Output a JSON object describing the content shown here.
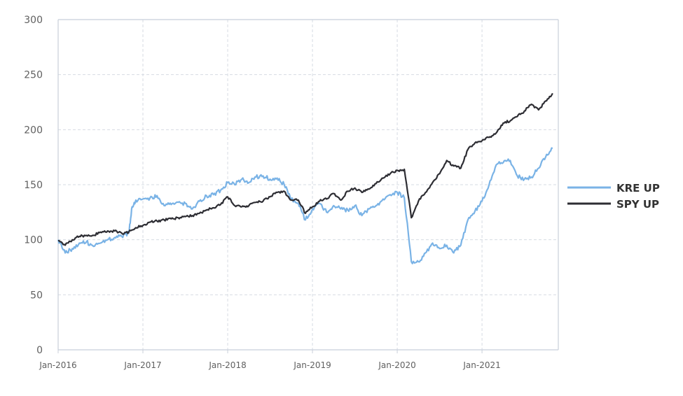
{
  "chart_data": {
    "type": "line",
    "title": "",
    "xlabel": "",
    "ylabel": "",
    "xlim": [
      "2016-01",
      "2021-11"
    ],
    "ylim": [
      0,
      300
    ],
    "y_ticks": [
      "0",
      "50",
      "100",
      "150",
      "200",
      "250",
      "300"
    ],
    "x_ticks": [
      "Jan-2016",
      "Jan-2017",
      "Jan-2018",
      "Jan-2019",
      "Jan-2020",
      "Jan-2021"
    ],
    "grid": true,
    "legend_position": "right",
    "series": [
      {
        "name": "KRE UP",
        "color": "#7ab3e6",
        "points": [
          [
            "2016-01-01",
            100
          ],
          [
            "2016-02-01",
            88
          ],
          [
            "2016-03-01",
            92
          ],
          [
            "2016-04-01",
            97
          ],
          [
            "2016-05-01",
            98
          ],
          [
            "2016-06-01",
            94
          ],
          [
            "2016-07-01",
            97
          ],
          [
            "2016-08-01",
            100
          ],
          [
            "2016-09-01",
            102
          ],
          [
            "2016-10-01",
            103
          ],
          [
            "2016-11-01",
            106
          ],
          [
            "2016-11-15",
            130
          ],
          [
            "2016-12-01",
            136
          ],
          [
            "2017-01-01",
            137
          ],
          [
            "2017-02-01",
            138
          ],
          [
            "2017-03-01",
            140
          ],
          [
            "2017-04-01",
            131
          ],
          [
            "2017-05-01",
            132
          ],
          [
            "2017-06-01",
            134
          ],
          [
            "2017-07-01",
            133
          ],
          [
            "2017-08-01",
            128
          ],
          [
            "2017-09-01",
            135
          ],
          [
            "2017-10-01",
            140
          ],
          [
            "2017-11-01",
            141
          ],
          [
            "2017-12-01",
            145
          ],
          [
            "2018-01-01",
            152
          ],
          [
            "2018-02-01",
            150
          ],
          [
            "2018-03-01",
            155
          ],
          [
            "2018-04-01",
            152
          ],
          [
            "2018-05-01",
            157
          ],
          [
            "2018-06-01",
            158
          ],
          [
            "2018-07-01",
            155
          ],
          [
            "2018-08-01",
            156
          ],
          [
            "2018-09-01",
            150
          ],
          [
            "2018-10-01",
            137
          ],
          [
            "2018-11-01",
            133
          ],
          [
            "2018-12-01",
            118
          ],
          [
            "2019-01-01",
            128
          ],
          [
            "2019-02-01",
            133
          ],
          [
            "2019-03-01",
            125
          ],
          [
            "2019-04-01",
            131
          ],
          [
            "2019-05-01",
            128
          ],
          [
            "2019-06-01",
            127
          ],
          [
            "2019-07-01",
            131
          ],
          [
            "2019-08-01",
            122
          ],
          [
            "2019-09-01",
            128
          ],
          [
            "2019-10-01",
            131
          ],
          [
            "2019-11-01",
            137
          ],
          [
            "2019-12-01",
            141
          ],
          [
            "2020-01-01",
            143
          ],
          [
            "2020-02-01",
            138
          ],
          [
            "2020-03-01",
            80
          ],
          [
            "2020-04-01",
            80
          ],
          [
            "2020-05-01",
            88
          ],
          [
            "2020-06-01",
            97
          ],
          [
            "2020-07-01",
            92
          ],
          [
            "2020-08-01",
            95
          ],
          [
            "2020-09-01",
            88
          ],
          [
            "2020-10-01",
            95
          ],
          [
            "2020-11-01",
            118
          ],
          [
            "2020-12-01",
            126
          ],
          [
            "2021-01-01",
            135
          ],
          [
            "2021-02-01",
            150
          ],
          [
            "2021-03-01",
            168
          ],
          [
            "2021-04-01",
            170
          ],
          [
            "2021-05-01",
            172
          ],
          [
            "2021-06-01",
            158
          ],
          [
            "2021-07-01",
            155
          ],
          [
            "2021-08-01",
            157
          ],
          [
            "2021-09-01",
            165
          ],
          [
            "2021-10-01",
            175
          ],
          [
            "2021-11-01",
            183
          ]
        ]
      },
      {
        "name": "SPY UP",
        "color": "#2d2d33",
        "points": [
          [
            "2016-01-01",
            99
          ],
          [
            "2016-02-01",
            95
          ],
          [
            "2016-03-01",
            100
          ],
          [
            "2016-04-01",
            103
          ],
          [
            "2016-05-01",
            104
          ],
          [
            "2016-06-01",
            104
          ],
          [
            "2016-07-01",
            107
          ],
          [
            "2016-08-01",
            108
          ],
          [
            "2016-09-01",
            108
          ],
          [
            "2016-10-01",
            106
          ],
          [
            "2016-11-01",
            107
          ],
          [
            "2016-12-01",
            111
          ],
          [
            "2017-01-01",
            113
          ],
          [
            "2017-02-01",
            116
          ],
          [
            "2017-03-01",
            117
          ],
          [
            "2017-04-01",
            118
          ],
          [
            "2017-05-01",
            119
          ],
          [
            "2017-06-01",
            120
          ],
          [
            "2017-07-01",
            121
          ],
          [
            "2017-08-01",
            122
          ],
          [
            "2017-09-01",
            124
          ],
          [
            "2017-10-01",
            127
          ],
          [
            "2017-11-01",
            129
          ],
          [
            "2017-12-01",
            132
          ],
          [
            "2018-01-01",
            139
          ],
          [
            "2018-02-01",
            131
          ],
          [
            "2018-03-01",
            130
          ],
          [
            "2018-04-01",
            131
          ],
          [
            "2018-05-01",
            134
          ],
          [
            "2018-06-01",
            135
          ],
          [
            "2018-07-01",
            139
          ],
          [
            "2018-08-01",
            143
          ],
          [
            "2018-09-01",
            144
          ],
          [
            "2018-10-01",
            136
          ],
          [
            "2018-11-01",
            136
          ],
          [
            "2018-12-01",
            124
          ],
          [
            "2019-01-01",
            130
          ],
          [
            "2019-02-01",
            135
          ],
          [
            "2019-03-01",
            137
          ],
          [
            "2019-04-01",
            142
          ],
          [
            "2019-05-01",
            136
          ],
          [
            "2019-06-01",
            144
          ],
          [
            "2019-07-01",
            147
          ],
          [
            "2019-08-01",
            143
          ],
          [
            "2019-09-01",
            146
          ],
          [
            "2019-10-01",
            151
          ],
          [
            "2019-11-01",
            156
          ],
          [
            "2019-12-01",
            160
          ],
          [
            "2020-01-01",
            163
          ],
          [
            "2020-02-01",
            164
          ],
          [
            "2020-03-01",
            120
          ],
          [
            "2020-04-01",
            135
          ],
          [
            "2020-05-01",
            143
          ],
          [
            "2020-06-01",
            152
          ],
          [
            "2020-07-01",
            160
          ],
          [
            "2020-08-01",
            172
          ],
          [
            "2020-09-01",
            167
          ],
          [
            "2020-10-01",
            165
          ],
          [
            "2020-11-01",
            182
          ],
          [
            "2020-12-01",
            188
          ],
          [
            "2021-01-01",
            190
          ],
          [
            "2021-02-01",
            193
          ],
          [
            "2021-03-01",
            197
          ],
          [
            "2021-04-01",
            206
          ],
          [
            "2021-05-01",
            208
          ],
          [
            "2021-06-01",
            212
          ],
          [
            "2021-07-01",
            217
          ],
          [
            "2021-08-01",
            223
          ],
          [
            "2021-09-01",
            218
          ],
          [
            "2021-10-01",
            226
          ],
          [
            "2021-11-01",
            233
          ]
        ]
      }
    ]
  }
}
